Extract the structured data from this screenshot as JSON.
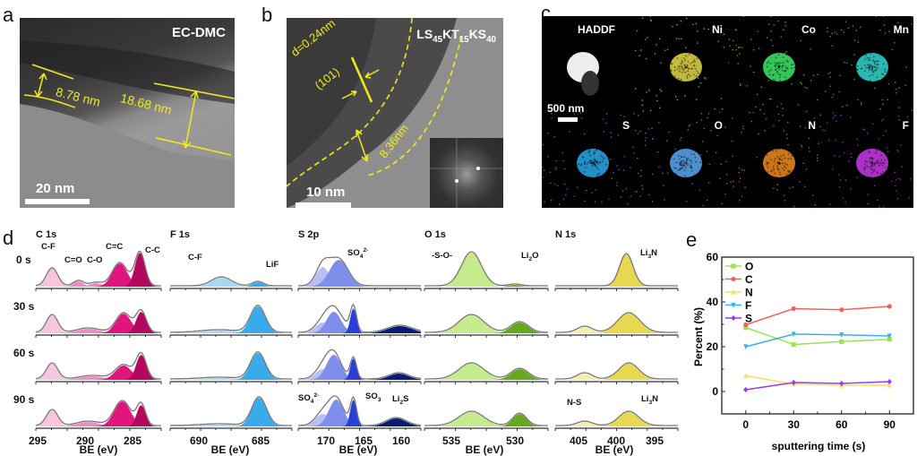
{
  "panels": {
    "a": {
      "letter": "a",
      "label": "EC-DMC",
      "measurements": [
        "8.78 nm",
        "18.68 nm"
      ],
      "scalebar": "20 nm"
    },
    "b": {
      "letter": "b",
      "label_parts": {
        "LS": "LS",
        "s45": "45",
        "KT": "KT",
        "s15": "15",
        "KS": "KS",
        "s40": "40"
      },
      "d_spacing": "d=0.24nm",
      "plane": "(101)",
      "thickness": "8.36nm",
      "scalebar": "10 nm"
    },
    "c": {
      "letter": "c",
      "maps": [
        {
          "label": "HADDF",
          "color": "#ffffff"
        },
        {
          "label": "Ni",
          "color": "#e3d84a"
        },
        {
          "label": "Co",
          "color": "#3ee86a"
        },
        {
          "label": "Mn",
          "color": "#32d6cf"
        },
        {
          "label": "S",
          "color": "#2aa8e8"
        },
        {
          "label": "O",
          "color": "#5aa8f0"
        },
        {
          "label": "N",
          "color": "#f08a20"
        },
        {
          "label": "F",
          "color": "#c83ae8"
        }
      ],
      "scalebar": "500 nm"
    },
    "d": {
      "letter": "d",
      "row_labels": [
        "0 s",
        "30 s",
        "60 s",
        "90 s"
      ],
      "axis_title": "BE (eV)",
      "spectra": [
        {
          "title": "C 1s",
          "ticks": [
            "295",
            "290",
            "285"
          ],
          "annotations": [
            "C-F",
            "C=O",
            "C-O",
            "C=C",
            "C-C"
          ],
          "colors": [
            "#f7c6de",
            "#f08cc4",
            "#e0157e",
            "#b3085e"
          ]
        },
        {
          "title": "F 1s",
          "ticks": [
            "690",
            "685"
          ],
          "annotations": [
            "C-F",
            "LiF"
          ],
          "colors": [
            "#a9d8f3",
            "#3aabea"
          ]
        },
        {
          "title": "S 2p",
          "ticks": [
            "170",
            "165",
            "160"
          ],
          "annotations_top": [
            "SO4 2-"
          ],
          "annotations_bottom": [
            "SO4 2-",
            "SO3",
            "Li2S"
          ],
          "colors": [
            "#b8c0f0",
            "#7f8eea",
            "#2a3ed8",
            "#0b1a72"
          ]
        },
        {
          "title": "O 1s",
          "ticks": [
            "535",
            "530"
          ],
          "annotations": [
            "-S-O-",
            "Li2O"
          ],
          "colors": [
            "#c4ec8c",
            "#66a81e"
          ]
        },
        {
          "title": "N 1s",
          "ticks": [
            "405",
            "400",
            "395"
          ],
          "annotations_top": [
            "Li3N"
          ],
          "annotations_bottom": [
            "N-S",
            "Li3N"
          ],
          "colors": [
            "#f4eeaa",
            "#e6d850"
          ]
        }
      ]
    },
    "e": {
      "letter": "e"
    }
  },
  "chart_data": {
    "type": "line",
    "title": "",
    "xlabel": "sputtering time (s)",
    "ylabel": "Percent (%)",
    "x": [
      0,
      30,
      60,
      90
    ],
    "xticks": [
      "0",
      "30",
      "60",
      "90"
    ],
    "yticks": [
      "0",
      "20",
      "40",
      "60"
    ],
    "xlim": [
      -15,
      105
    ],
    "ylim": [
      -10,
      60
    ],
    "legend_position": "top-left",
    "series": [
      {
        "name": "O",
        "color": "#9ee05a",
        "marker": "square",
        "values": [
          28.5,
          21,
          22.3,
          23.3
        ]
      },
      {
        "name": "C",
        "color": "#f06262",
        "marker": "circle",
        "values": [
          29.8,
          37,
          36.5,
          38
        ]
      },
      {
        "name": "N",
        "color": "#eee06a",
        "marker": "triangle-up",
        "values": [
          7,
          3.3,
          2.8,
          2.8
        ]
      },
      {
        "name": "F",
        "color": "#3aaef0",
        "marker": "triangle-down",
        "values": [
          20,
          25.6,
          25.3,
          24.8
        ]
      },
      {
        "name": "S",
        "color": "#9a3ae8",
        "marker": "diamond",
        "values": [
          0.8,
          4,
          3.6,
          4.4
        ]
      }
    ]
  }
}
